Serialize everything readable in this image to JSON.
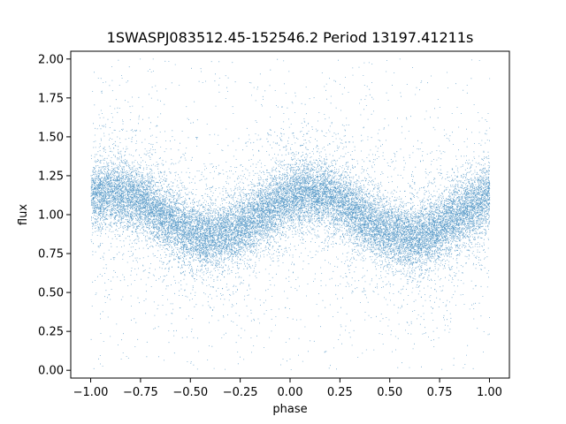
{
  "chart_data": {
    "type": "scatter",
    "title": "1SWASPJ083512.45-152546.2 Period 13197.41211s",
    "xlabel": "phase",
    "ylabel": "flux",
    "xlim": [
      -1.1,
      1.1
    ],
    "ylim": [
      -0.05,
      2.05
    ],
    "x_ticks": [
      -1.0,
      -0.75,
      -0.5,
      -0.25,
      0.0,
      0.25,
      0.5,
      0.75,
      1.0
    ],
    "x_tick_labels": [
      "−1.00",
      "−0.75",
      "−0.50",
      "−0.25",
      "0.00",
      "0.25",
      "0.50",
      "0.75",
      "1.00"
    ],
    "y_ticks": [
      0.0,
      0.25,
      0.5,
      0.75,
      1.0,
      1.25,
      1.5,
      1.75,
      2.0
    ],
    "y_tick_labels": [
      "0.00",
      "0.25",
      "0.50",
      "0.75",
      "1.00",
      "1.25",
      "1.50",
      "1.75",
      "2.00"
    ],
    "grid": false,
    "point_color": "#1f77b4",
    "series": [
      {
        "model": "sinusoid",
        "x_range": [
          -1.0,
          1.0
        ],
        "mean_flux": 1.0,
        "amplitude": 0.14,
        "peak_phases": [
          -0.85,
          0.1
        ],
        "trough_phases": [
          -0.4,
          0.6
        ],
        "approx_point_count": 24000,
        "core_scatter": 0.1,
        "outlier_range": [
          0.0,
          2.0
        ]
      }
    ]
  }
}
